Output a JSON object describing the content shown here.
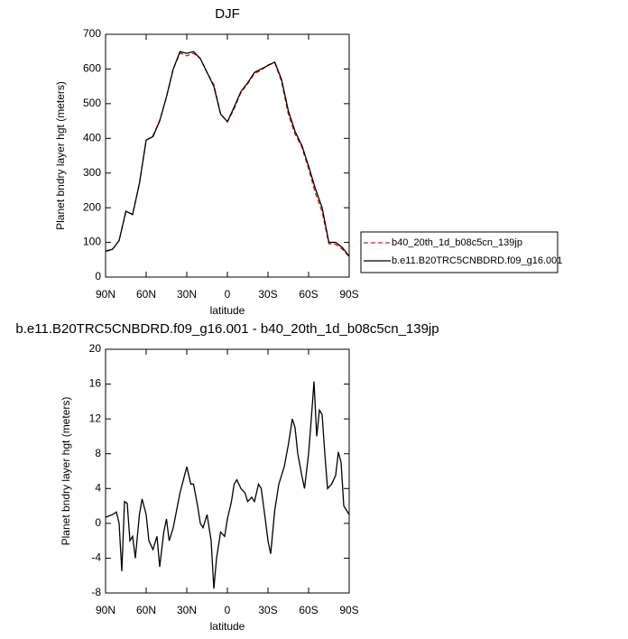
{
  "chart_data": [
    {
      "type": "line",
      "title": "DJF",
      "xlabel": "latitude",
      "ylabel": "Planet bndry layer hgt (meters)",
      "x": [
        90,
        85,
        80,
        75,
        70,
        65,
        60,
        55,
        50,
        45,
        40,
        35,
        30,
        25,
        20,
        15,
        10,
        5,
        0,
        -5,
        -10,
        -15,
        -20,
        -25,
        -30,
        -35,
        -40,
        -45,
        -50,
        -55,
        -60,
        -65,
        -70,
        -75,
        -80,
        -85,
        -90
      ],
      "series": [
        {
          "name": "b40_20th_1d_b08c5cn_139jp",
          "color": "#e41a1c",
          "dash": true,
          "values": [
            74,
            79,
            106,
            188,
            182,
            268,
            394,
            408,
            452,
            519,
            600,
            646,
            638,
            645,
            630,
            589,
            555,
            471,
            447,
            485,
            532,
            557,
            587,
            596,
            612,
            618,
            564,
            470,
            412,
            375,
            312,
            242,
            188,
            96,
            94,
            80,
            59
          ]
        },
        {
          "name": "b.e11.B20TRC5CNBDRD.f09_g16.001",
          "color": "#000000",
          "dash": false,
          "values": [
            75,
            80,
            105,
            190,
            180,
            270,
            395,
            405,
            450,
            520,
            600,
            650,
            645,
            650,
            630,
            590,
            550,
            470,
            448,
            490,
            535,
            560,
            590,
            600,
            610,
            620,
            570,
            480,
            420,
            380,
            320,
            255,
            200,
            100,
            100,
            85,
            60
          ]
        }
      ],
      "xlim": [
        90,
        -90
      ],
      "xticks": [
        {
          "value": 90,
          "label": "90N"
        },
        {
          "value": 60,
          "label": "60N"
        },
        {
          "value": 30,
          "label": "30N"
        },
        0,
        {
          "value": -30,
          "label": "30S"
        },
        {
          "value": -60,
          "label": "60S"
        },
        {
          "value": -90,
          "label": "90S"
        }
      ],
      "ylim": [
        0,
        700
      ],
      "yticks": [
        0,
        100,
        200,
        300,
        400,
        500,
        600,
        700
      ],
      "legend": "outside-right"
    },
    {
      "type": "line",
      "title": "b.e11.B20TRC5CNBDRD.f09_g16.001 - b40_20th_1d_b08c5cn_139jp",
      "xlabel": "latitude",
      "ylabel": "Planet bndry layer hgt (meters)",
      "x": [
        90,
        85,
        82,
        80,
        78,
        76,
        74,
        72,
        70,
        68,
        65,
        63,
        60,
        58,
        55,
        52,
        50,
        47,
        45,
        43,
        40,
        35,
        30,
        27,
        25,
        22,
        20,
        18,
        15,
        12,
        10,
        8,
        5,
        2,
        0,
        -3,
        -5,
        -7,
        -10,
        -13,
        -15,
        -18,
        -20,
        -23,
        -25,
        -28,
        -30,
        -32,
        -35,
        -38,
        -40,
        -42,
        -45,
        -48,
        -50,
        -52,
        -55,
        -57,
        -60,
        -62,
        -64,
        -66,
        -68,
        -70,
        -72,
        -74,
        -77,
        -80,
        -82,
        -84,
        -86,
        -88,
        -90
      ],
      "color": "#000000",
      "values": [
        0.7,
        1.0,
        1.3,
        0,
        -5.5,
        2.5,
        2.3,
        -2,
        -1.5,
        -4,
        1,
        2.8,
        1,
        -2,
        -3,
        -1.5,
        -5,
        -1,
        0.5,
        -2,
        -0.5,
        3.5,
        6.5,
        4.5,
        4.5,
        2,
        0,
        -0.5,
        1,
        -2,
        -7.5,
        -4,
        -1,
        -1.5,
        0.5,
        2.5,
        4.5,
        5,
        4,
        3.5,
        2.5,
        3,
        2.5,
        4.5,
        4,
        0.5,
        -2,
        -3.5,
        1.5,
        4.5,
        5.5,
        6.5,
        9,
        12,
        11,
        8,
        5.5,
        4,
        8,
        12,
        16.3,
        10,
        13,
        12.5,
        8,
        4,
        4.5,
        5.5,
        8.2,
        7,
        2,
        1.5,
        1
      ],
      "xlim": [
        90,
        -90
      ],
      "xticks": [
        {
          "value": 90,
          "label": "90N"
        },
        {
          "value": 60,
          "label": "60N"
        },
        {
          "value": 30,
          "label": "30N"
        },
        0,
        {
          "value": -30,
          "label": "30S"
        },
        {
          "value": -60,
          "label": "60S"
        },
        {
          "value": -90,
          "label": "90S"
        }
      ],
      "ylim": [
        -8,
        20
      ],
      "yticks": [
        -8,
        -4,
        0,
        4,
        8,
        12,
        16,
        20
      ]
    }
  ]
}
